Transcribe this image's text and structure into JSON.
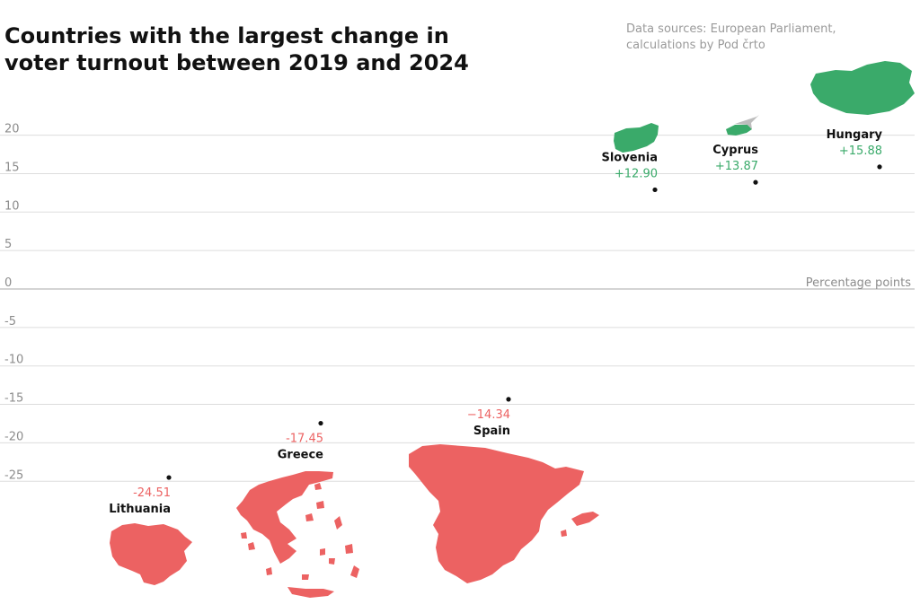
{
  "title": [
    "Countries with the largest change in",
    "voter turnout between 2019 and 2024"
  ],
  "source": [
    "Data sources: European Parliament,",
    "calculations by Pod črto"
  ],
  "colors": {
    "positive": "#3aaa6a",
    "negative": "#ec6262",
    "grid": "#dddddd",
    "zero": "#aaaaaa",
    "cyprus_north": "#bdbdbd"
  },
  "chart_data": {
    "type": "scatter",
    "y_unit_label": "Percentage points",
    "ylim": [
      -25,
      20
    ],
    "y_ticks": [
      20,
      15,
      10,
      5,
      0,
      -5,
      -10,
      -15,
      -20,
      -25
    ],
    "grid": true,
    "points": [
      {
        "country": "Lithuania",
        "value_label": "-24.51",
        "y": -24.51,
        "shape": "lithuania-map-icon"
      },
      {
        "country": "Greece",
        "value_label": "-17.45",
        "y": -17.45,
        "shape": "greece-map-icon"
      },
      {
        "country": "Spain",
        "value_label": "−14.34",
        "y": -14.34,
        "shape": "spain-map-icon"
      },
      {
        "country": "Slovenia",
        "value_label": "+12.90",
        "y": 12.9,
        "shape": "slovenia-map-icon"
      },
      {
        "country": "Cyprus",
        "value_label": "+13.87",
        "y": 13.87,
        "shape": "cyprus-map-icon"
      },
      {
        "country": "Hungary",
        "value_label": "+15.88",
        "y": 15.88,
        "shape": "hungary-map-icon"
      }
    ]
  }
}
